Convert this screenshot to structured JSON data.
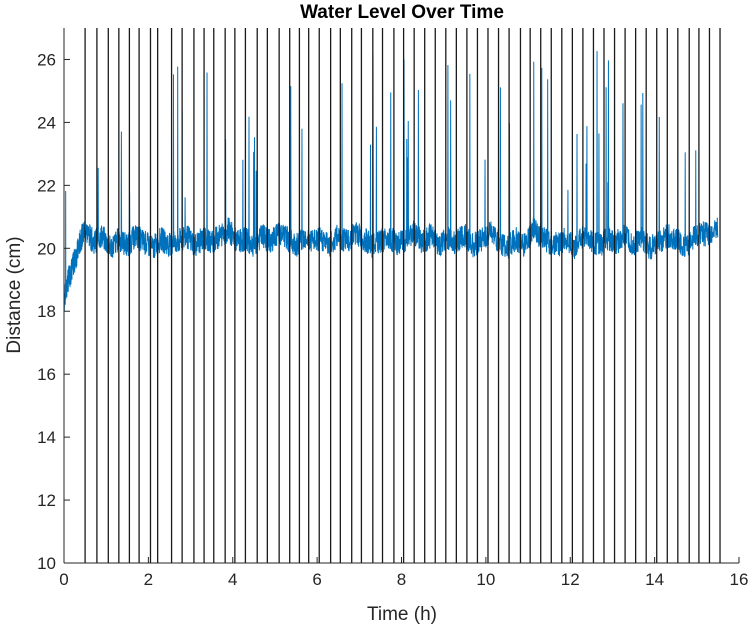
{
  "chart_data": {
    "type": "line",
    "title": "Water Level Over Time",
    "xlabel": "Time (h)",
    "ylabel": "Distance (cm)",
    "xlim": [
      0,
      16
    ],
    "ylim": [
      10,
      27
    ],
    "xticks": [
      0,
      2,
      4,
      6,
      8,
      10,
      12,
      14,
      16
    ],
    "yticks": [
      10,
      12,
      14,
      16,
      18,
      20,
      22,
      24,
      26
    ],
    "grid": false,
    "legend": "none",
    "series": [
      {
        "style": "dark vertical lines (full height)",
        "color": "#1a1a1a",
        "x": [
          0.5,
          0.78,
          1.05,
          1.3,
          1.55,
          1.78,
          2.05,
          2.22,
          2.55,
          2.8,
          3.08,
          3.32,
          3.55,
          3.82,
          4.05,
          4.3,
          4.58,
          4.82,
          5.1,
          5.35,
          5.58,
          5.8,
          6.05,
          6.32,
          6.55,
          6.82,
          7.05,
          7.32,
          7.55,
          7.82,
          8.05,
          8.3,
          8.55,
          8.8,
          9.05,
          9.3,
          9.55,
          9.8,
          10.05,
          10.3,
          10.55,
          10.82,
          11.05,
          11.3,
          11.55,
          11.8,
          12.05,
          12.3,
          12.55,
          12.8,
          13.05,
          13.3,
          13.55,
          13.8,
          14.05,
          14.3,
          14.55,
          14.82,
          15.05,
          15.3,
          15.55
        ]
      },
      {
        "style": "blue noisy trace",
        "color": "#0072BD",
        "x": [
          0.0,
          0.1,
          0.2,
          0.3,
          0.4,
          0.5,
          0.7,
          0.9,
          1.1,
          1.3,
          1.5,
          1.7,
          1.9,
          2.1,
          2.3,
          2.5,
          2.7,
          2.9,
          3.1,
          3.3,
          3.5,
          3.7,
          3.9,
          4.1,
          4.3,
          4.5,
          4.7,
          4.9,
          5.1,
          5.3,
          5.5,
          5.7,
          5.9,
          6.1,
          6.3,
          6.5,
          6.7,
          6.9,
          7.1,
          7.3,
          7.5,
          7.7,
          7.9,
          8.1,
          8.3,
          8.5,
          8.7,
          8.9,
          9.1,
          9.3,
          9.5,
          9.7,
          9.9,
          10.1,
          10.3,
          10.5,
          10.7,
          10.9,
          11.1,
          11.3,
          11.5,
          11.7,
          11.9,
          12.1,
          12.3,
          12.5,
          12.7,
          12.9,
          13.1,
          13.3,
          13.5,
          13.7,
          13.9,
          14.1,
          14.3,
          14.5,
          14.7,
          14.9,
          15.1,
          15.3,
          15.5
        ],
        "y": [
          18.3,
          19.0,
          19.4,
          19.8,
          20.3,
          20.6,
          20.2,
          20.4,
          20.0,
          20.3,
          20.1,
          20.4,
          20.2,
          20.0,
          20.3,
          20.1,
          20.2,
          20.4,
          20.1,
          20.3,
          20.2,
          20.4,
          20.6,
          20.2,
          20.3,
          20.1,
          20.4,
          20.2,
          20.5,
          20.3,
          20.1,
          20.4,
          20.2,
          20.3,
          20.1,
          20.4,
          20.2,
          20.5,
          20.3,
          20.1,
          20.2,
          20.4,
          20.1,
          20.3,
          20.5,
          20.2,
          20.4,
          20.1,
          20.3,
          20.2,
          20.4,
          20.1,
          20.3,
          20.5,
          20.2,
          20.0,
          20.3,
          20.1,
          20.6,
          20.4,
          20.2,
          20.1,
          20.3,
          20.0,
          20.4,
          20.2,
          20.1,
          20.3,
          20.2,
          20.4,
          20.1,
          20.3,
          20.0,
          20.2,
          20.4,
          20.3,
          20.1,
          20.3,
          20.5,
          20.4,
          20.6
        ]
      }
    ]
  }
}
